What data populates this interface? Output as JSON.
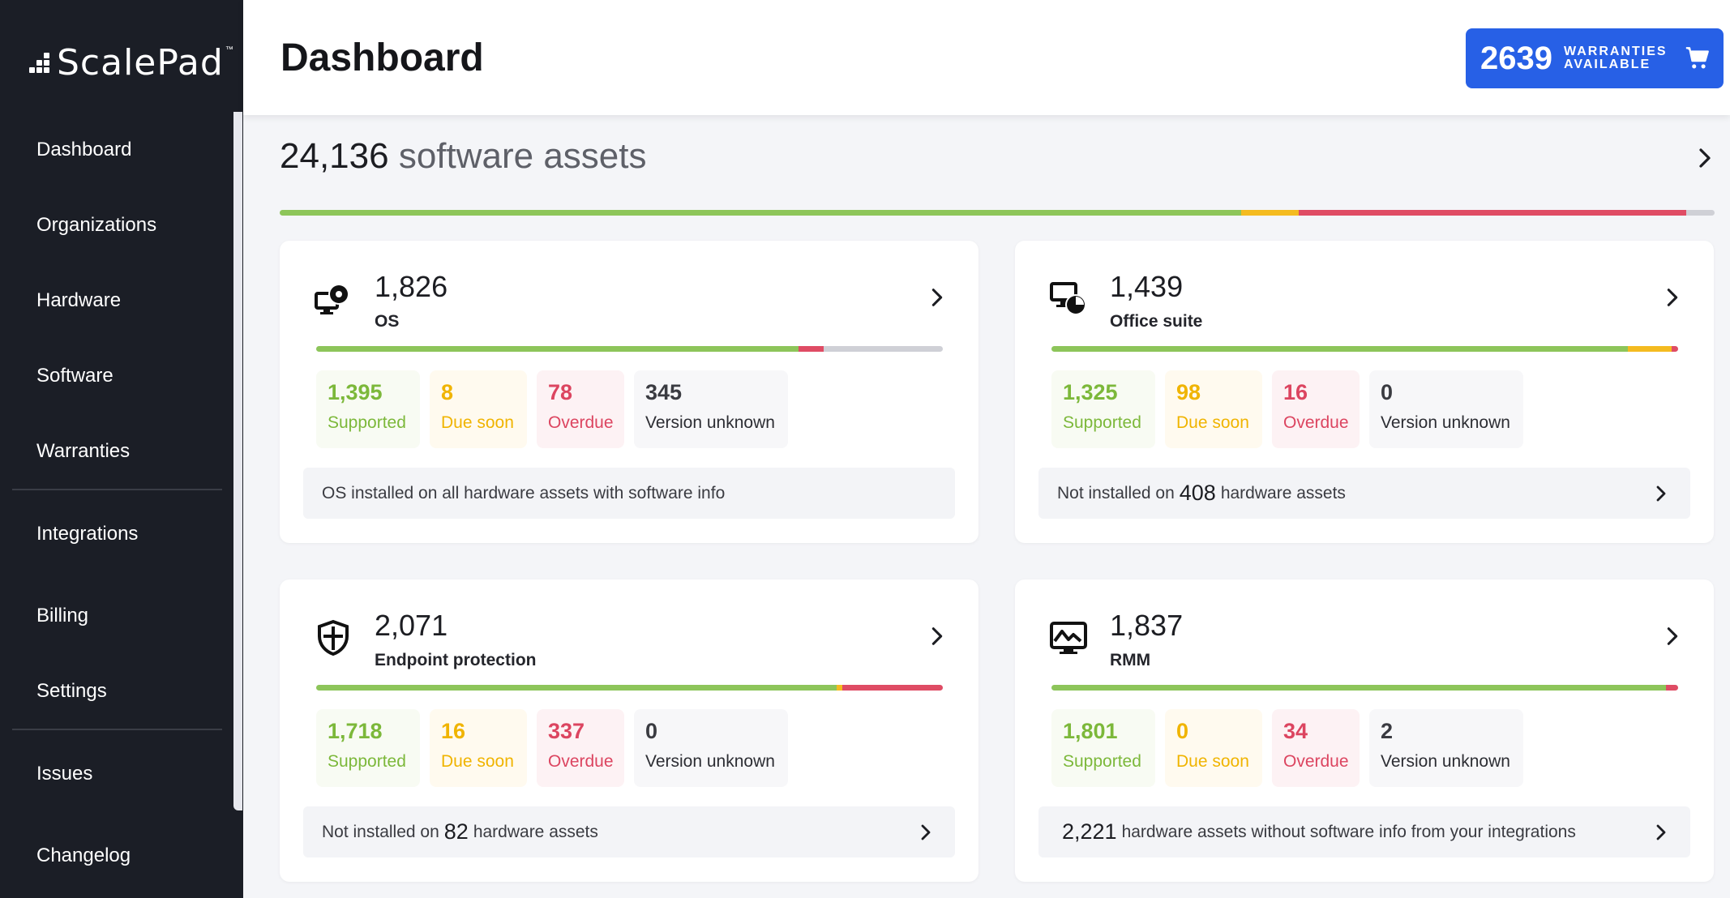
{
  "app": {
    "logo_text": "ScalePad",
    "logo_tm": "™",
    "page_title": "Dashboard"
  },
  "sidebar": {
    "items": [
      {
        "label": "Dashboard"
      },
      {
        "label": "Organizations"
      },
      {
        "label": "Hardware"
      },
      {
        "label": "Software"
      },
      {
        "label": "Warranties"
      },
      {
        "label": "Integrations"
      },
      {
        "label": "Billing"
      },
      {
        "label": "Settings"
      },
      {
        "label": "Issues"
      },
      {
        "label": "Changelog"
      }
    ]
  },
  "warranties": {
    "count": "2639",
    "label_line1": "WARRANTIES",
    "label_line2": "AVAILABLE"
  },
  "summary": {
    "count": "24,136",
    "label": "software assets",
    "bar": {
      "supported": 0.67,
      "due_soon": 0.04,
      "overdue": 0.27,
      "unknown": 0.02
    }
  },
  "colors": {
    "supported": "#8dc55a",
    "due_soon": "#f4bb20",
    "overdue": "#df4c64",
    "unknown": "#cfd0d6",
    "accent": "#2760e6",
    "sidebar_bg": "#1b1e26"
  },
  "cards": [
    {
      "icon": "monitor-disc-icon",
      "count": "1,826",
      "name": "OS",
      "stats": {
        "supported": "1,395",
        "due_soon": "8",
        "overdue": "78",
        "unknown": "345"
      },
      "labels": {
        "supported": "Supported",
        "due_soon": "Due soon",
        "overdue": "Overdue",
        "unknown": "Version unknown"
      },
      "bar": {
        "supported": 0.77,
        "due_soon": 0.0,
        "overdue": 0.04,
        "unknown": 0.19
      },
      "footer": {
        "pre": "OS installed on all hardware assets with software info",
        "num": "",
        "post": ""
      }
    },
    {
      "icon": "monitor-pie-icon",
      "count": "1,439",
      "name": "Office suite",
      "stats": {
        "supported": "1,325",
        "due_soon": "98",
        "overdue": "16",
        "unknown": "0"
      },
      "labels": {
        "supported": "Supported",
        "due_soon": "Due soon",
        "overdue": "Overdue",
        "unknown": "Version unknown"
      },
      "bar": {
        "supported": 0.92,
        "due_soon": 0.07,
        "overdue": 0.01,
        "unknown": 0.0
      },
      "footer": {
        "pre": "Not installed on",
        "num": "408",
        "post": "hardware assets"
      }
    },
    {
      "icon": "shield-icon",
      "count": "2,071",
      "name": "Endpoint protection",
      "stats": {
        "supported": "1,718",
        "due_soon": "16",
        "overdue": "337",
        "unknown": "0"
      },
      "labels": {
        "supported": "Supported",
        "due_soon": "Due soon",
        "overdue": "Overdue",
        "unknown": "Version unknown"
      },
      "bar": {
        "supported": 0.83,
        "due_soon": 0.01,
        "overdue": 0.16,
        "unknown": 0.0
      },
      "footer": {
        "pre": "Not installed on",
        "num": "82",
        "post": "hardware assets"
      }
    },
    {
      "icon": "monitor-pulse-icon",
      "count": "1,837",
      "name": "RMM",
      "stats": {
        "supported": "1,801",
        "due_soon": "0",
        "overdue": "34",
        "unknown": "2"
      },
      "labels": {
        "supported": "Supported",
        "due_soon": "Due soon",
        "overdue": "Overdue",
        "unknown": "Version unknown"
      },
      "bar": {
        "supported": 0.98,
        "due_soon": 0.0,
        "overdue": 0.02,
        "unknown": 0.0
      },
      "footer": {
        "pre": "",
        "num": "2,221",
        "post": "hardware assets without software info from your integrations"
      }
    }
  ]
}
